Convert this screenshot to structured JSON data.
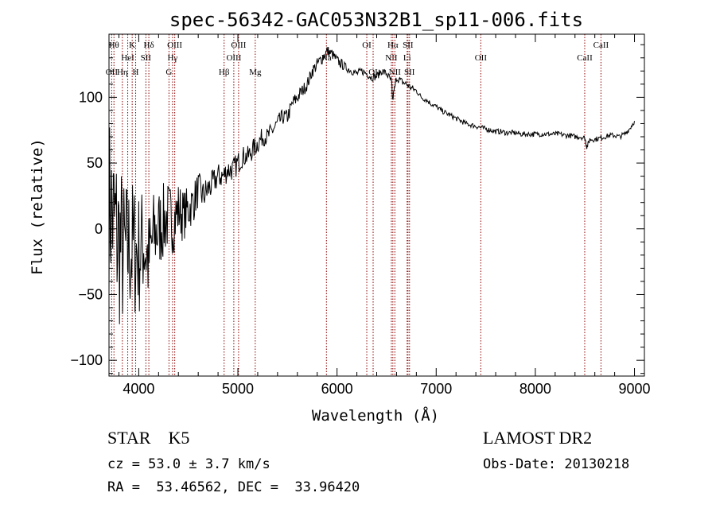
{
  "chart_data": {
    "type": "line",
    "title": "spec-56342-GAC053N32B1_sp11-006.fits",
    "xlabel": "Wavelength (Å)",
    "ylabel": "Flux (relative)",
    "xlim": [
      3700,
      9100
    ],
    "ylim": [
      -112,
      148
    ],
    "xticks": [
      4000,
      5000,
      6000,
      7000,
      8000,
      9000
    ],
    "xtick_labels": [
      "4000",
      "5000",
      "6000",
      "7000",
      "8000",
      "9000"
    ],
    "yticks": [
      -100,
      -50,
      0,
      50,
      100
    ],
    "ytick_labels": [
      "−100",
      "−50",
      "0",
      "50",
      "100"
    ],
    "series": [
      {
        "line_color": "#000000",
        "x": [
          3700,
          3750,
          3800,
          3850,
          3900,
          3950,
          4000,
          4050,
          4100,
          4150,
          4200,
          4250,
          4300,
          4350,
          4400,
          4450,
          4500,
          4550,
          4600,
          4650,
          4700,
          4750,
          4800,
          4850,
          4900,
          4950,
          5000,
          5050,
          5100,
          5150,
          5200,
          5250,
          5300,
          5350,
          5400,
          5450,
          5500,
          5550,
          5600,
          5650,
          5700,
          5750,
          5800,
          5850,
          5900,
          5950,
          6000,
          6050,
          6100,
          6150,
          6200,
          6250,
          6300,
          6350,
          6400,
          6450,
          6500,
          6550,
          6560,
          6600,
          6650,
          6700,
          6750,
          6800,
          6850,
          6900,
          6950,
          7000,
          7050,
          7100,
          7150,
          7200,
          7250,
          7300,
          7350,
          7400,
          7450,
          7500,
          7550,
          7600,
          7650,
          7700,
          7750,
          7800,
          7850,
          7900,
          7950,
          8000,
          8050,
          8100,
          8150,
          8200,
          8250,
          8300,
          8350,
          8400,
          8450,
          8500,
          8520,
          8550,
          8600,
          8650,
          8700,
          8750,
          8800,
          8850,
          8900,
          8950,
          9000
        ],
        "y": [
          20,
          5,
          -10,
          -20,
          -15,
          -15,
          -20,
          -10,
          -25,
          -5,
          0,
          5,
          10,
          5,
          15,
          10,
          15,
          20,
          30,
          25,
          30,
          35,
          40,
          40,
          45,
          45,
          50,
          55,
          55,
          60,
          65,
          70,
          70,
          75,
          80,
          85,
          85,
          95,
          100,
          105,
          110,
          120,
          125,
          130,
          135,
          133,
          128,
          125,
          122,
          120,
          118,
          120,
          118,
          115,
          116,
          120,
          118,
          112,
          98,
          115,
          112,
          110,
          107,
          105,
          100,
          98,
          95,
          93,
          90,
          88,
          86,
          84,
          82,
          80,
          79,
          78,
          77,
          76,
          75,
          74,
          74,
          73,
          73,
          73,
          72,
          72,
          72,
          72,
          72,
          72,
          72,
          72,
          72,
          71,
          71,
          70,
          70,
          69,
          62,
          68,
          68,
          69,
          70,
          71,
          71,
          70,
          72,
          76,
          82
        ],
        "noise_amplitude": [
          70,
          70,
          70,
          60,
          55,
          55,
          50,
          45,
          40,
          35,
          32,
          30,
          27,
          25,
          22,
          20,
          18,
          16,
          14,
          12,
          12,
          10,
          10,
          10,
          9,
          9,
          9,
          8,
          8,
          8,
          8,
          7,
          7,
          7,
          7,
          6,
          6,
          6,
          6,
          5,
          5,
          5,
          5,
          5,
          5,
          4,
          4,
          4,
          3,
          3,
          3,
          3,
          3,
          3,
          3,
          3,
          3,
          3,
          3,
          3,
          3,
          3,
          3,
          2,
          2,
          2,
          2,
          2,
          2,
          2,
          2,
          2,
          2,
          2,
          2,
          2,
          2,
          2,
          2,
          2,
          2,
          2,
          2,
          2,
          2,
          2,
          2,
          2,
          2,
          2,
          2,
          2,
          2,
          2,
          2,
          2,
          2,
          2,
          2,
          2,
          2,
          2,
          2,
          2,
          2,
          2,
          2,
          2,
          2
        ]
      }
    ],
    "line_markers": {
      "line_color": "#8b0000",
      "lines": [
        {
          "label": "OII",
          "x": 3727,
          "row": 3
        },
        {
          "label": "Hθ",
          "x": 3750,
          "row": 1
        },
        {
          "label": "Hη",
          "x": 3835,
          "row": 3
        },
        {
          "label": "HeI",
          "x": 3889,
          "row": 2
        },
        {
          "label": "K",
          "x": 3934,
          "row": 1
        },
        {
          "label": "H",
          "x": 3969,
          "row": 3
        },
        {
          "label": "SII",
          "x": 4072,
          "row": 2
        },
        {
          "label": "Hδ",
          "x": 4102,
          "row": 1
        },
        {
          "label": "G",
          "x": 4305,
          "row": 3
        },
        {
          "label": "Hγ",
          "x": 4341,
          "row": 2
        },
        {
          "label": "OIII",
          "x": 4363,
          "row": 1
        },
        {
          "label": "Hβ",
          "x": 4861,
          "row": 3
        },
        {
          "label": "OIII",
          "x": 4959,
          "row": 2
        },
        {
          "label": "OIII",
          "x": 5007,
          "row": 1
        },
        {
          "label": "Mg",
          "x": 5175,
          "row": 3
        },
        {
          "label": "Na",
          "x": 5893,
          "row": 2
        },
        {
          "label": "OI",
          "x": 6300,
          "row": 1
        },
        {
          "label": "OI",
          "x": 6364,
          "row": 3
        },
        {
          "label": "NII",
          "x": 6548,
          "row": 2
        },
        {
          "label": "Hα",
          "x": 6563,
          "row": 1
        },
        {
          "label": "NII",
          "x": 6583,
          "row": 3
        },
        {
          "label": "Li",
          "x": 6707,
          "row": 2
        },
        {
          "label": "SII",
          "x": 6716,
          "row": 1
        },
        {
          "label": "SII",
          "x": 6731,
          "row": 3
        },
        {
          "label": "OII",
          "x": 7450,
          "row": 2
        },
        {
          "label": "CaII",
          "x": 8498,
          "row": 2
        },
        {
          "label": "CaII",
          "x": 8662,
          "row": 1
        }
      ]
    },
    "grid": false,
    "legend": "none"
  },
  "footer": {
    "object_class": "STAR    K5",
    "survey": "LAMOST DR2",
    "redshift": "cz = 53.0 ± 3.7 km/s",
    "obs_date": "Obs-Date: 20130218",
    "coords": "RA =  53.46562, DEC =  33.96420"
  }
}
